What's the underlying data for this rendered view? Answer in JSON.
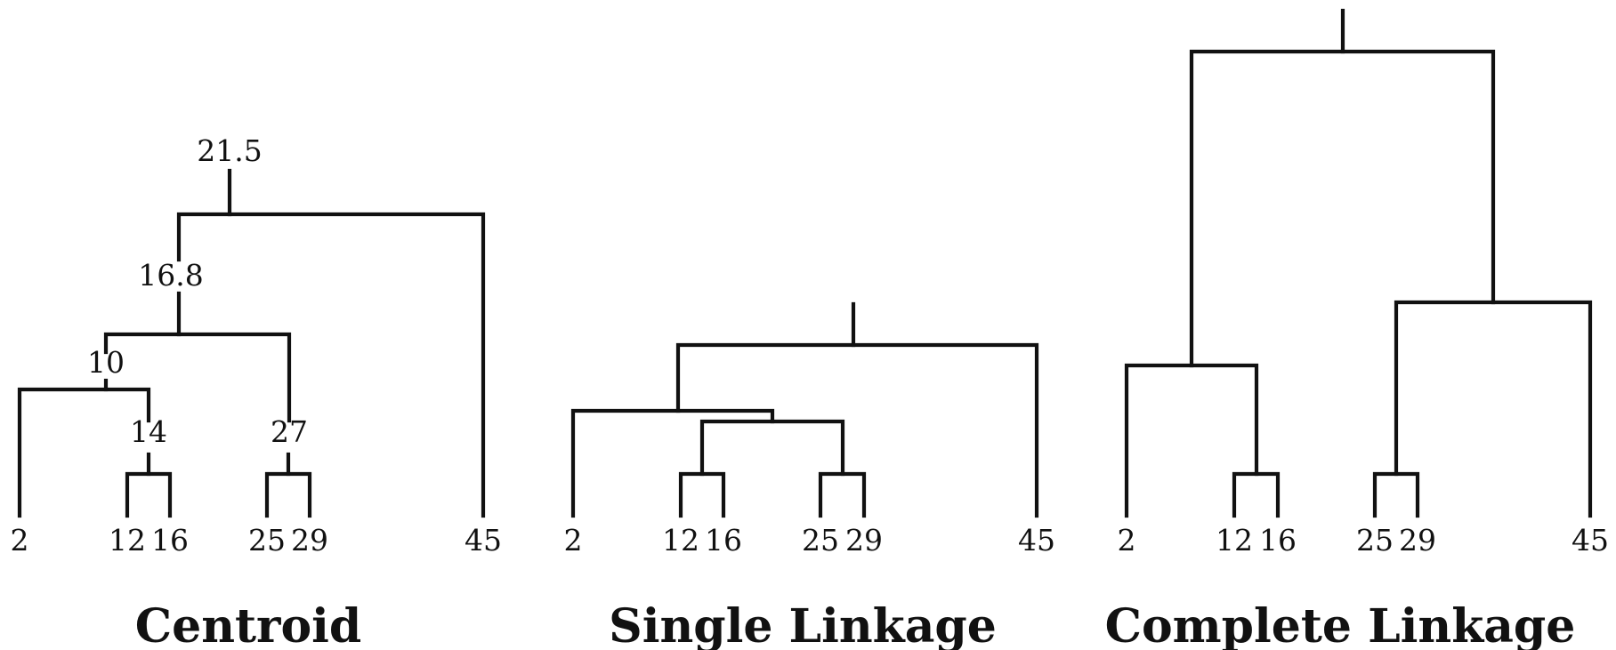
{
  "dendrograms": [
    {
      "title": "Centroid",
      "leaves": [
        "2",
        "12",
        "16",
        "25",
        "29",
        "45"
      ],
      "merge_labels": [
        "14",
        "27",
        "10",
        "16.8",
        "21.5"
      ]
    },
    {
      "title": "Single Linkage",
      "leaves": [
        "2",
        "12",
        "16",
        "25",
        "29",
        "45"
      ],
      "merge_labels": []
    },
    {
      "title": "Complete Linkage",
      "leaves": [
        "2",
        "12",
        "16",
        "25",
        "29",
        "45"
      ],
      "merge_labels": []
    }
  ]
}
